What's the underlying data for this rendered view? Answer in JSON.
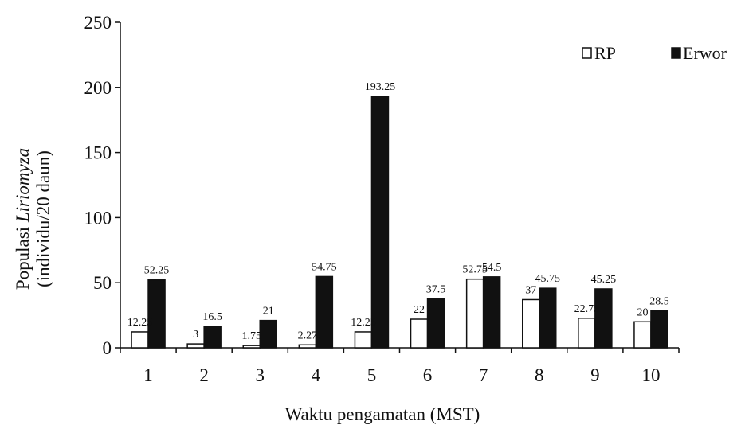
{
  "chart_data": {
    "type": "bar",
    "categories": [
      "1",
      "2",
      "3",
      "4",
      "5",
      "6",
      "7",
      "8",
      "9",
      "10"
    ],
    "series": [
      {
        "name": "RP",
        "values": [
          12.25,
          3,
          1.75,
          2.27,
          12.25,
          22,
          52.75,
          37,
          22.75,
          20
        ],
        "color": "#ffffff",
        "labels": [
          "12.25",
          "3",
          "1.75",
          "2.27",
          "12.25",
          "22",
          "52.75",
          "37",
          "22.75",
          "20"
        ]
      },
      {
        "name": "Erwor",
        "values": [
          52.25,
          16.5,
          21,
          54.75,
          193.25,
          37.5,
          54.5,
          45.75,
          45.25,
          28.5
        ],
        "color": "#111111",
        "labels": [
          "52.25",
          "16.5",
          "21",
          "54.75",
          "193.25",
          "37.5",
          "54.5",
          "45.75",
          "45.25",
          "28.5"
        ]
      }
    ],
    "ylim": [
      0,
      250
    ],
    "yticks": [
      "0",
      "50",
      "100",
      "150",
      "200",
      "250"
    ],
    "xlabel": "Waktu pengamatan (MST)",
    "ylabel_line1_prefix": "Populasi ",
    "ylabel_line1_italic": "Liriomyza",
    "ylabel_line2": "(individu/20 daun)",
    "legend_position": "top-right",
    "grid": false
  }
}
